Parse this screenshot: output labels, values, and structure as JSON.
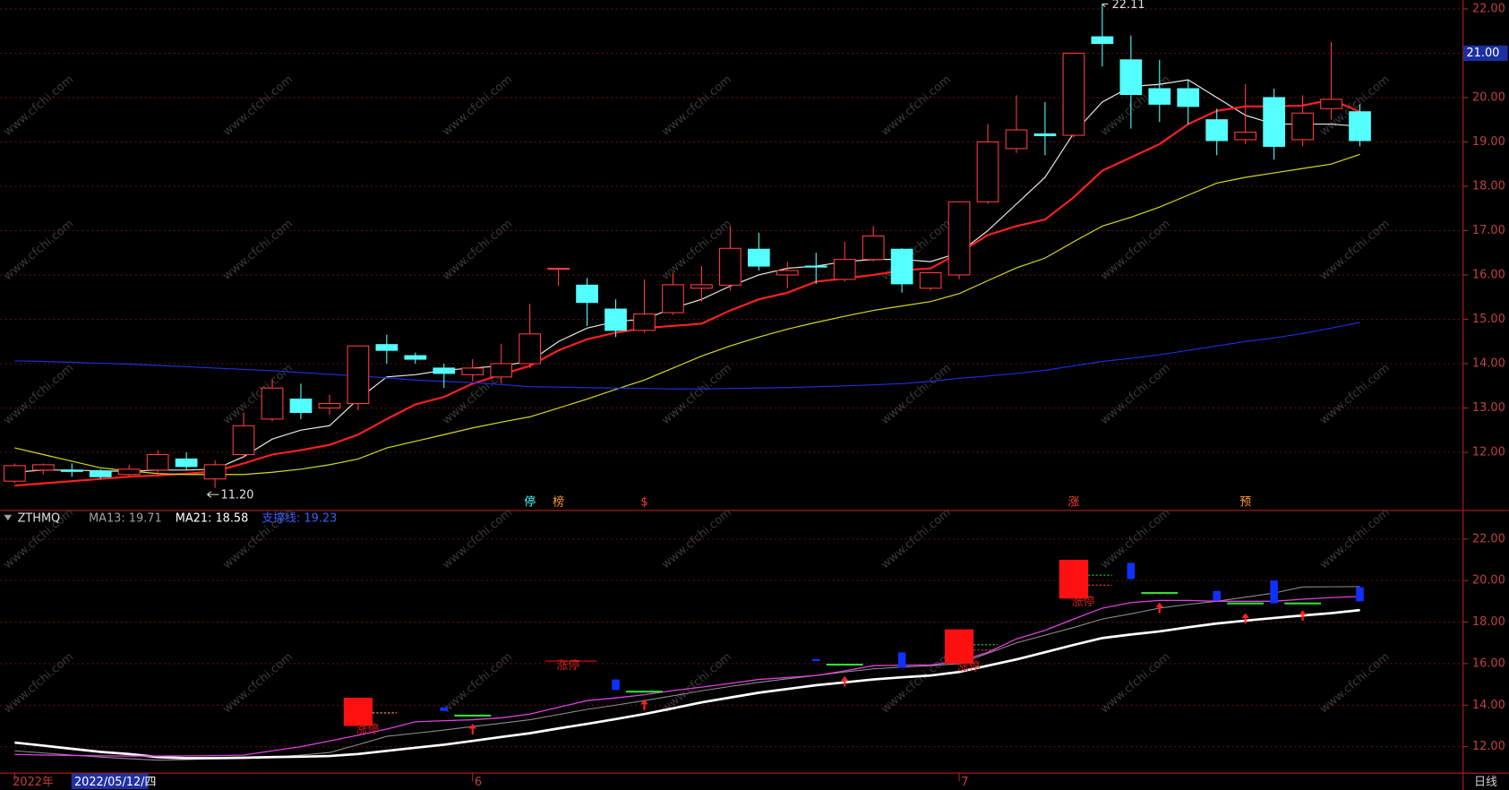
{
  "chart_data": [
    {
      "type": "candlestick",
      "open": [
        11.35,
        11.6,
        11.6,
        11.58,
        11.5,
        11.6,
        11.85,
        11.4,
        11.95,
        12.75,
        13.2,
        13.0,
        13.1,
        14.43,
        14.18,
        13.9,
        13.75,
        13.7,
        14.0,
        16.15,
        15.77,
        15.23,
        14.75,
        15.15,
        15.7,
        15.77,
        16.58,
        16.0,
        16.2,
        15.9,
        16.35,
        16.58,
        15.7,
        16.0,
        17.65,
        18.85,
        19.18,
        19.15,
        21.37,
        20.85,
        20.2,
        20.2,
        19.5,
        19.05,
        20.0,
        19.05,
        19.75,
        19.68
      ],
      "high": [
        11.75,
        11.75,
        11.75,
        11.62,
        11.72,
        12.05,
        12.0,
        11.82,
        12.9,
        13.65,
        13.55,
        13.3,
        14.4,
        14.65,
        14.25,
        14.0,
        14.1,
        14.45,
        15.35,
        16.15,
        15.93,
        15.45,
        15.9,
        16.05,
        16.2,
        17.1,
        16.95,
        16.3,
        16.5,
        16.75,
        17.1,
        16.6,
        16.05,
        17.65,
        19.4,
        20.05,
        19.9,
        21.0,
        22.11,
        21.4,
        20.85,
        20.4,
        19.75,
        20.3,
        20.2,
        20.05,
        21.25,
        19.85
      ],
      "low": [
        11.3,
        11.5,
        11.45,
        11.4,
        11.45,
        11.5,
        11.6,
        11.2,
        11.9,
        12.7,
        12.75,
        12.85,
        12.95,
        14.0,
        14.0,
        13.45,
        13.6,
        13.55,
        13.9,
        15.75,
        14.85,
        14.6,
        14.7,
        15.1,
        15.4,
        15.65,
        16.1,
        15.7,
        15.8,
        15.85,
        16.3,
        15.6,
        15.65,
        15.9,
        17.6,
        18.75,
        18.7,
        19.1,
        20.7,
        19.3,
        19.45,
        19.4,
        18.7,
        18.95,
        18.6,
        18.9,
        19.5,
        18.9
      ],
      "close": [
        11.7,
        11.72,
        11.57,
        11.45,
        11.62,
        11.95,
        11.68,
        11.72,
        12.6,
        13.45,
        12.9,
        13.1,
        14.4,
        14.3,
        14.1,
        13.78,
        13.9,
        14.0,
        14.67,
        16.15,
        15.38,
        14.75,
        15.12,
        15.78,
        15.78,
        16.6,
        16.2,
        16.1,
        16.18,
        16.35,
        16.88,
        15.8,
        16.05,
        17.65,
        19.0,
        19.27,
        19.14,
        21.0,
        21.22,
        20.07,
        19.85,
        19.8,
        19.03,
        19.22,
        18.9,
        19.65,
        19.96,
        19.03
      ],
      "up_color": "#ff3c3c",
      "down_color": "#54ffff",
      "series": [
        {
          "color": "#e8e8e8",
          "values": [
            11.55,
            11.6,
            11.6,
            11.58,
            11.57,
            11.6,
            11.6,
            11.62,
            11.9,
            12.3,
            12.5,
            12.6,
            13.2,
            13.7,
            13.75,
            13.85,
            13.9,
            13.95,
            14.05,
            14.5,
            14.8,
            14.95,
            15.0,
            15.25,
            15.45,
            15.75,
            16.0,
            16.15,
            16.2,
            16.3,
            16.35,
            16.35,
            16.3,
            16.5,
            17.0,
            17.6,
            18.2,
            19.2,
            19.9,
            20.25,
            20.3,
            20.4,
            20.0,
            19.6,
            19.4,
            19.4,
            19.4,
            19.35
          ]
        },
        {
          "color": "#ff2020",
          "values": [
            11.25,
            11.3,
            11.35,
            11.4,
            11.45,
            11.48,
            11.52,
            11.57,
            11.75,
            11.95,
            12.05,
            12.17,
            12.4,
            12.75,
            13.08,
            13.25,
            13.55,
            13.75,
            13.95,
            14.3,
            14.55,
            14.7,
            14.8,
            14.85,
            14.9,
            15.2,
            15.45,
            15.6,
            15.85,
            15.92,
            16.0,
            16.1,
            16.15,
            16.5,
            16.9,
            17.1,
            17.25,
            17.75,
            18.35,
            18.65,
            18.95,
            19.4,
            19.7,
            19.8,
            19.8,
            19.82,
            19.95,
            19.68
          ]
        },
        {
          "color": "#d8d820",
          "values": [
            12.1,
            11.95,
            11.8,
            11.65,
            11.58,
            11.52,
            11.5,
            11.5,
            11.5,
            11.55,
            11.62,
            11.72,
            11.85,
            12.1,
            12.25,
            12.4,
            12.55,
            12.68,
            12.8,
            13.0,
            13.2,
            13.42,
            13.63,
            13.9,
            14.17,
            14.4,
            14.6,
            14.78,
            14.93,
            15.07,
            15.2,
            15.3,
            15.4,
            15.58,
            15.87,
            16.16,
            16.38,
            16.75,
            17.1,
            17.3,
            17.53,
            17.8,
            18.07,
            18.2,
            18.3,
            18.4,
            18.5,
            18.72
          ]
        },
        {
          "color": "#1a30d8",
          "values": [
            14.06,
            14.05,
            14.03,
            14.01,
            13.99,
            13.96,
            13.93,
            13.9,
            13.87,
            13.84,
            13.8,
            13.76,
            13.72,
            13.68,
            13.63,
            13.6,
            13.57,
            13.53,
            13.48,
            13.47,
            13.46,
            13.45,
            13.44,
            13.43,
            13.43,
            13.44,
            13.45,
            13.46,
            13.48,
            13.5,
            13.52,
            13.55,
            13.6,
            13.67,
            13.72,
            13.78,
            13.85,
            13.95,
            14.05,
            14.12,
            14.2,
            14.3,
            14.4,
            14.5,
            14.58,
            14.68,
            14.8,
            14.93
          ]
        }
      ],
      "ylim": [
        10.7,
        22.2
      ],
      "yticks": [
        {
          "value": 12,
          "label": "12.00"
        },
        {
          "value": 13,
          "label": "13.00"
        },
        {
          "value": 14,
          "label": "14.00"
        },
        {
          "value": 15,
          "label": "15.00"
        },
        {
          "value": 16,
          "label": "16.00"
        },
        {
          "value": 17,
          "label": "17.00"
        },
        {
          "value": 18,
          "label": "18.00"
        },
        {
          "value": 19,
          "label": "19.00"
        },
        {
          "value": 20,
          "label": "20.00"
        },
        {
          "value": 21,
          "label": "21.00"
        },
        {
          "value": 22,
          "label": "22.00"
        }
      ],
      "grid": true,
      "high_mark": {
        "index": 38,
        "value": 22.11
      },
      "low_mark": {
        "index": 7,
        "value": 11.2,
        "label": "11.20"
      },
      "price_tag": {
        "value": 21,
        "label": "21.00"
      },
      "signals": [
        {
          "index": 18,
          "text": "停",
          "color": "#54ffff"
        },
        {
          "index": 19,
          "text": "榜",
          "color": "#ff9a30"
        },
        {
          "index": 22,
          "text": "$",
          "color": "#ff3c3c"
        },
        {
          "index": 37,
          "text": "涨",
          "color": "#ff3c3c"
        },
        {
          "index": 43,
          "text": "预",
          "color": "#ff9a30"
        }
      ]
    },
    {
      "type": "indicator",
      "indicator": "ZTHMQ",
      "categories": [
        "2022年",
        null,
        null,
        null,
        null,
        null,
        null,
        null,
        null,
        null,
        null,
        null,
        null,
        null,
        null,
        null,
        "6",
        null,
        null,
        null,
        null,
        null,
        null,
        null,
        null,
        null,
        null,
        null,
        null,
        null,
        null,
        null,
        null,
        "7",
        null,
        null,
        null,
        null,
        null,
        null,
        null,
        null,
        null,
        null,
        null,
        null,
        null,
        null
      ],
      "series": [
        {
          "label": "MA13: 19.71",
          "label_color": "#a0a0a0",
          "color": "#8c8c8c",
          "width": 1,
          "values": [
            11.8,
            11.7,
            11.6,
            11.5,
            11.42,
            11.35,
            11.38,
            11.42,
            11.45,
            11.5,
            11.6,
            11.72,
            12.1,
            12.5,
            12.65,
            12.8,
            12.97,
            13.13,
            13.3,
            13.55,
            13.8,
            14.0,
            14.22,
            14.45,
            14.69,
            14.9,
            15.1,
            15.27,
            15.43,
            15.6,
            15.75,
            15.83,
            15.9,
            16.0,
            16.5,
            17.0,
            17.37,
            17.74,
            18.15,
            18.4,
            18.67,
            18.85,
            19.0,
            19.2,
            19.4,
            19.69,
            19.7,
            19.71
          ]
        },
        {
          "label": "MA21: 18.58",
          "label_color": "#ffffff",
          "color": "#ffffff",
          "width": 2.5,
          "values": [
            12.2,
            12.05,
            11.9,
            11.75,
            11.65,
            11.5,
            11.45,
            11.45,
            11.47,
            11.5,
            11.52,
            11.55,
            11.65,
            11.8,
            11.95,
            12.1,
            12.28,
            12.47,
            12.65,
            12.88,
            13.1,
            13.33,
            13.57,
            13.85,
            14.13,
            14.37,
            14.6,
            14.78,
            14.96,
            15.1,
            15.24,
            15.34,
            15.43,
            15.6,
            15.9,
            16.2,
            16.55,
            16.9,
            17.23,
            17.4,
            17.55,
            17.75,
            17.93,
            18.07,
            18.2,
            18.32,
            18.43,
            18.58
          ]
        },
        {
          "label": "支撑线: 19.23",
          "label_color": "#3a5cff",
          "color": "#e040e0",
          "width": 1.2,
          "values": [
            11.63,
            11.6,
            11.58,
            11.56,
            11.55,
            11.55,
            11.56,
            11.57,
            11.6,
            11.8,
            12.0,
            12.28,
            12.55,
            12.85,
            13.2,
            13.25,
            13.3,
            13.39,
            13.57,
            13.9,
            14.22,
            14.35,
            14.5,
            14.7,
            14.87,
            15.05,
            15.24,
            15.33,
            15.43,
            15.65,
            15.9,
            15.92,
            15.94,
            16.12,
            16.54,
            17.19,
            17.6,
            18.15,
            18.67,
            18.94,
            19.04,
            19.04,
            19.0,
            19.0,
            19.0,
            19.1,
            19.18,
            19.23
          ]
        }
      ],
      "limit_boxes": [
        {
          "index": 12,
          "high": 14.36,
          "low": 13.0,
          "label": "涨停"
        },
        {
          "index": 19,
          "high": 16.12,
          "low": 16.08,
          "label": "涨停"
        },
        {
          "index": 33,
          "high": 17.65,
          "low": 16.0,
          "label": "涨停"
        },
        {
          "index": 37,
          "high": 21.0,
          "low": 19.13,
          "label": "涨停"
        }
      ],
      "box_color": "#ff1010",
      "blue_bars": [
        {
          "index": 15,
          "high": 13.9,
          "low": 13.72
        },
        {
          "index": 21,
          "high": 15.24,
          "low": 14.73
        },
        {
          "index": 28,
          "high": 16.22,
          "low": 16.15
        },
        {
          "index": 31,
          "high": 16.54,
          "low": 15.8
        },
        {
          "index": 39,
          "high": 20.85,
          "low": 20.07
        },
        {
          "index": 42,
          "high": 19.5,
          "low": 19.04
        },
        {
          "index": 44,
          "high": 20.0,
          "low": 18.9
        },
        {
          "index": 47,
          "high": 19.68,
          "low": 19.0
        }
      ],
      "bar_color": "#1030ff",
      "green_levels": [
        {
          "index": 16,
          "value": 13.5
        },
        {
          "index": 22,
          "value": 14.65
        },
        {
          "index": 29,
          "value": 15.95
        },
        {
          "index": 40,
          "value": 19.4
        },
        {
          "index": 43,
          "value": 18.9
        },
        {
          "index": 45,
          "value": 18.9
        }
      ],
      "level_color": "#30e030",
      "arrows": [
        {
          "index": 16,
          "value": 13.1
        },
        {
          "index": 22,
          "value": 14.27
        },
        {
          "index": 29,
          "value": 15.4
        },
        {
          "index": 40,
          "value": 18.94
        },
        {
          "index": 43,
          "value": 18.43
        },
        {
          "index": 45,
          "value": 18.57
        }
      ],
      "arrow_color": "#ff2020",
      "ylim": [
        10.75,
        23.35
      ],
      "yticks": [
        {
          "value": 12,
          "label": "12.00"
        },
        {
          "value": 14,
          "label": "14.00"
        },
        {
          "value": 16,
          "label": "16.00"
        },
        {
          "value": 18,
          "label": "18.00"
        },
        {
          "value": 20,
          "label": "20.00"
        },
        {
          "value": 22,
          "label": "22.00"
        }
      ],
      "grid": true
    }
  ],
  "cursor_date": "2022/05/12/四",
  "period": "日线",
  "watermark": "www.cfchi.com"
}
